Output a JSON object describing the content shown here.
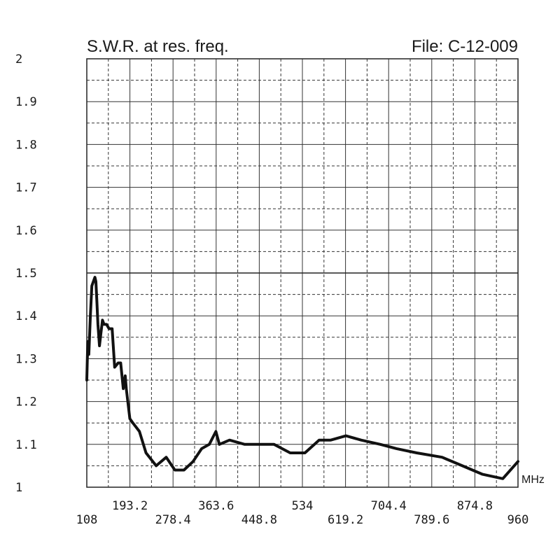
{
  "chart_data": {
    "type": "line",
    "title": "S.W.R. at res. freq.",
    "file_label": "File:  C-12-009",
    "x_unit": "MHz",
    "xlim": [
      108,
      960
    ],
    "ylim": [
      1,
      2
    ],
    "x_ticks_upper": [
      "193.2",
      "363.6",
      "534",
      "704.4",
      "874.8"
    ],
    "x_ticks_lower": [
      "108",
      "278.4",
      "448.8",
      "619.2",
      "789.6",
      "960"
    ],
    "x_tick_values_upper": [
      193.2,
      363.6,
      534,
      704.4,
      874.8
    ],
    "x_tick_values_lower": [
      108,
      278.4,
      448.8,
      619.2,
      789.6,
      960
    ],
    "y_ticks": [
      "1",
      "1.1",
      "1.2",
      "1.3",
      "1.4",
      "1.5",
      "1.6",
      "1.7",
      "1.8",
      "1.9",
      "2"
    ],
    "y_tick_values": [
      1,
      1.1,
      1.2,
      1.3,
      1.4,
      1.5,
      1.6,
      1.7,
      1.8,
      1.9,
      2
    ],
    "grid": true,
    "reference_line_y": 1.5,
    "series": [
      {
        "color": "#111111",
        "x": [
          108,
          110,
          112,
          115,
          118,
          121,
          124,
          126,
          128,
          130,
          133,
          136,
          139,
          142,
          147,
          152,
          158,
          163,
          170,
          175,
          180,
          184,
          186,
          190,
          193,
          199,
          212,
          225,
          245,
          265,
          282,
          300,
          318,
          335,
          350,
          363,
          370,
          390,
          420,
          452,
          478,
          510,
          539,
          567,
          590,
          620,
          650,
          688,
          720,
          760,
          810,
          850,
          890,
          930,
          960
        ],
        "y": [
          1.25,
          1.34,
          1.31,
          1.4,
          1.47,
          1.48,
          1.49,
          1.48,
          1.43,
          1.38,
          1.33,
          1.36,
          1.39,
          1.38,
          1.38,
          1.37,
          1.37,
          1.28,
          1.29,
          1.29,
          1.23,
          1.26,
          1.23,
          1.19,
          1.16,
          1.15,
          1.13,
          1.08,
          1.05,
          1.07,
          1.04,
          1.04,
          1.06,
          1.09,
          1.1,
          1.13,
          1.1,
          1.11,
          1.1,
          1.1,
          1.1,
          1.08,
          1.08,
          1.11,
          1.11,
          1.12,
          1.11,
          1.1,
          1.09,
          1.08,
          1.07,
          1.05,
          1.03,
          1.02,
          1.06
        ]
      }
    ]
  }
}
